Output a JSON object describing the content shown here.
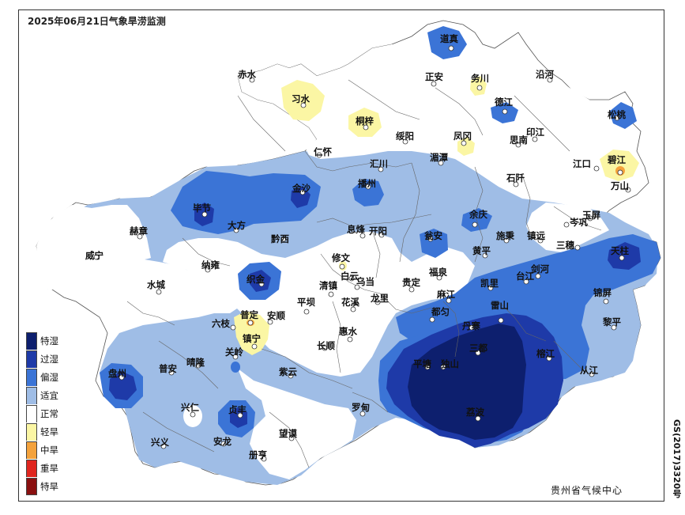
{
  "title": "2025年06月21日气象旱涝监测",
  "producer": "贵州省气候中心",
  "map_number": "GS(2017)3320号",
  "legend": [
    {
      "label": "特湿",
      "color": "#0d1f6e"
    },
    {
      "label": "过湿",
      "color": "#1e3aa8"
    },
    {
      "label": "偏湿",
      "color": "#3b74d6"
    },
    {
      "label": "适宜",
      "color": "#9fbde6"
    },
    {
      "label": "正常",
      "color": "#ffffff"
    },
    {
      "label": "轻旱",
      "color": "#fbf6a4"
    },
    {
      "label": "中旱",
      "color": "#f4a23c"
    },
    {
      "label": "重旱",
      "color": "#e0261f"
    },
    {
      "label": "特旱",
      "color": "#8a1010"
    }
  ],
  "cities": [
    "赤水",
    "习水",
    "道真",
    "正安",
    "务川",
    "沿河",
    "桐梓",
    "德江",
    "印江",
    "松桃",
    "仁怀",
    "绥阳",
    "凤冈",
    "思南",
    "汇川",
    "湄潭",
    "江口",
    "碧江",
    "石阡",
    "万山",
    "金沙",
    "播州",
    "毕节",
    "大方",
    "黔西",
    "息烽",
    "开阳",
    "瓮安",
    "余庆",
    "施秉",
    "镇远",
    "玉屏",
    "三穗",
    "岑巩",
    "天柱",
    "赫章",
    "威宁",
    "纳雍",
    "修文",
    "黄平",
    "台江",
    "剑河",
    "锦屏",
    "织金",
    "白云",
    "清镇",
    "乌当",
    "贵定",
    "福泉",
    "凯里",
    "水城",
    "平坝",
    "花溪",
    "龙里",
    "麻江",
    "雷山",
    "普定",
    "安顺",
    "六枝",
    "丹寨",
    "都匀",
    "黎平",
    "镇宁",
    "惠水",
    "长顺",
    "三都",
    "榕江",
    "关岭",
    "盘州",
    "普安",
    "晴隆",
    "紫云",
    "平塘",
    "独山",
    "从江",
    "兴仁",
    "贞丰",
    "罗甸",
    "荔波",
    "兴义",
    "安龙",
    "望谟",
    "册亨"
  ]
}
